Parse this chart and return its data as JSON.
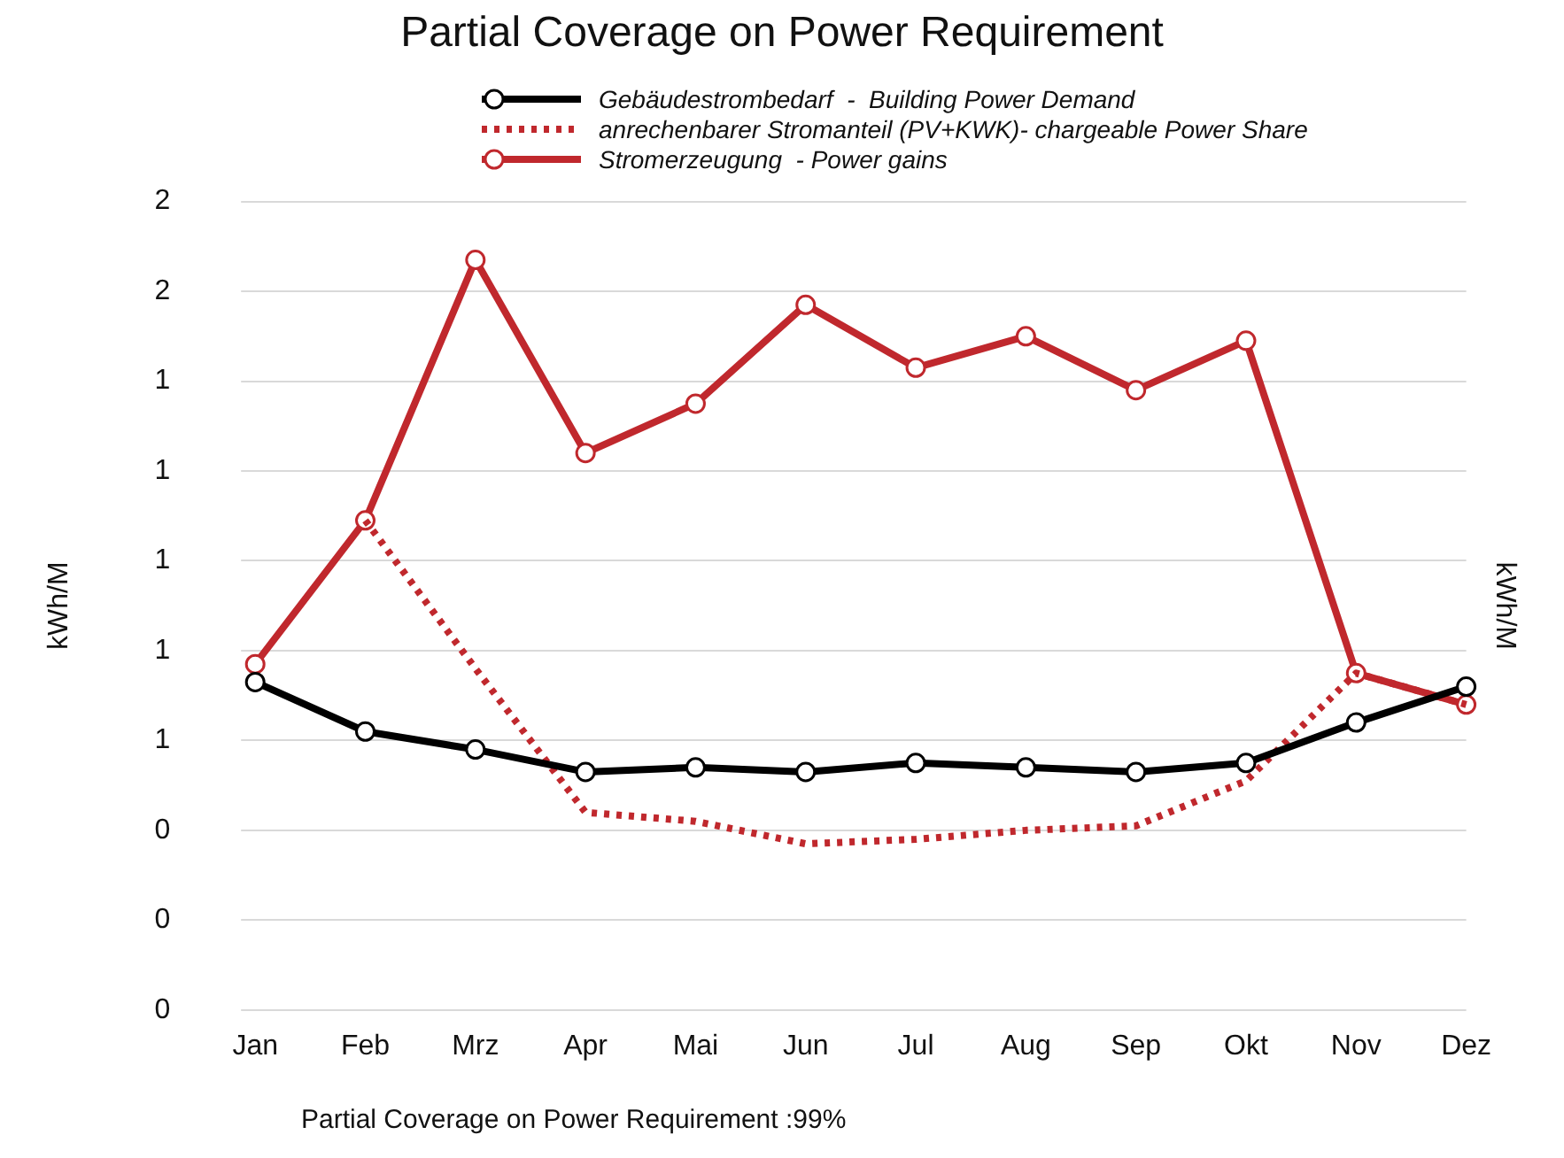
{
  "chart_data": {
    "type": "line",
    "title": "Partial Coverage on Power Requirement",
    "ylabel": "kWh/M",
    "y2label": "kWh/M",
    "categories": [
      "Jan",
      "Feb",
      "Mrz",
      "Apr",
      "Mai",
      "Jun",
      "Jul",
      "Aug",
      "Sep",
      "Okt",
      "Nov",
      "Dez"
    ],
    "series": [
      {
        "name": "Gebäudestrombedarf  -  Building Power Demand",
        "color": "#000000",
        "marker": "circle",
        "line_style": "solid",
        "values": [
          0.73,
          0.62,
          0.58,
          0.53,
          0.54,
          0.53,
          0.55,
          0.54,
          0.53,
          0.55,
          0.64,
          0.72
        ]
      },
      {
        "name": "anrechenbarer Stromanteil (PV+KWK)- chargeable Power Share",
        "color": "#c0282d",
        "marker": "none",
        "line_style": "dotted",
        "values": [
          null,
          1.09,
          0.76,
          0.44,
          0.42,
          0.37,
          0.38,
          0.4,
          0.41,
          0.51,
          0.75,
          0.68
        ]
      },
      {
        "name": "Stromerzeugung  - Power gains",
        "color": "#c0282d",
        "marker": "circle",
        "line_style": "solid",
        "values": [
          0.77,
          1.09,
          1.67,
          1.24,
          1.35,
          1.57,
          1.43,
          1.5,
          1.38,
          1.49,
          0.75,
          0.68
        ]
      }
    ],
    "ylim": [
      0,
      1.8
    ],
    "yticks": [
      {
        "value": 0,
        "label": "0"
      },
      {
        "value": 0.2,
        "label": "0"
      },
      {
        "value": 0.4,
        "label": "0"
      },
      {
        "value": 0.6,
        "label": "1"
      },
      {
        "value": 0.8,
        "label": "1"
      },
      {
        "value": 1.0,
        "label": "1"
      },
      {
        "value": 1.2,
        "label": "1"
      },
      {
        "value": 1.4,
        "label": "1"
      },
      {
        "value": 1.6,
        "label": "2"
      },
      {
        "value": 1.8,
        "label": "2"
      }
    ],
    "grid": "y",
    "legend": "top",
    "annotations": [
      "Partial Coverage on Power Requirement :99%"
    ]
  }
}
